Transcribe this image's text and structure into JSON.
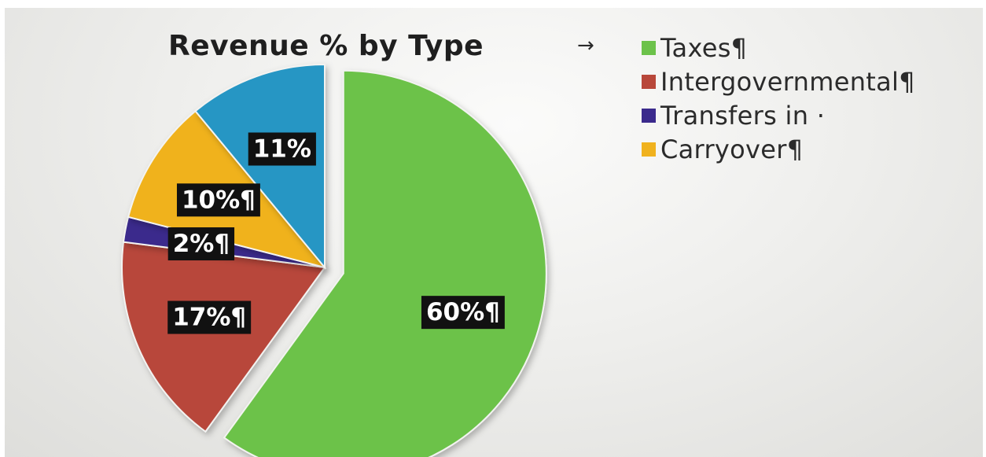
{
  "chart_data": {
    "type": "pie",
    "title": "Revenue % by Type",
    "title_arrow": "→",
    "slices": [
      {
        "name": "Taxes¶",
        "value": 60,
        "label": "60%¶",
        "color": "#6cc24a",
        "exploded": true
      },
      {
        "name": "Intergovernmental¶",
        "value": 17,
        "label": "17%¶",
        "color": "#b8473a"
      },
      {
        "name": "Transfers in ·",
        "value": 2,
        "label": "2%¶",
        "color": "#3b2a8c"
      },
      {
        "name": "Carryover¶",
        "value": 10,
        "label": "10%¶",
        "color": "#f0b21e"
      },
      {
        "name": "",
        "value": 11,
        "label": "11%",
        "color": "#2596c4"
      }
    ],
    "legend_position": "top-right",
    "data_label_background": "#111111"
  }
}
